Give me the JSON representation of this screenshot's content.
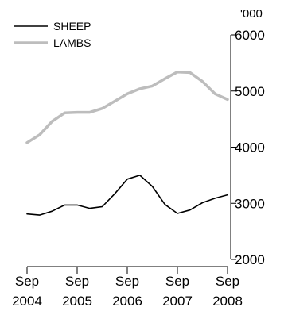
{
  "chart_data": {
    "type": "line",
    "unit": "'000",
    "x_ticks": [
      {
        "line1": "Sep",
        "line2": "2004"
      },
      {
        "line1": "Sep",
        "line2": "2005"
      },
      {
        "line1": "Sep",
        "line2": "2006"
      },
      {
        "line1": "Sep",
        "line2": "2007"
      },
      {
        "line1": "Sep",
        "line2": "2008"
      }
    ],
    "x": [
      "Sep 2004",
      "Dec 2004",
      "Mar 2005",
      "Jun 2005",
      "Sep 2005",
      "Dec 2005",
      "Mar 2006",
      "Jun 2006",
      "Sep 2006",
      "Dec 2006",
      "Mar 2007",
      "Jun 2007",
      "Sep 2007",
      "Dec 2007",
      "Mar 2008",
      "Jun 2008",
      "Sep 2008"
    ],
    "ylim": [
      2000,
      6000
    ],
    "yticks": [
      "2000",
      "3000",
      "4000",
      "5000",
      "6000"
    ],
    "grid": false,
    "legend_position": "top-left",
    "series": [
      {
        "name": "SHEEP",
        "color": "#000000",
        "values": [
          2810,
          2790,
          2860,
          2970,
          2970,
          2910,
          2940,
          3170,
          3430,
          3500,
          3300,
          2980,
          2820,
          2880,
          3010,
          3090,
          3150
        ]
      },
      {
        "name": "LAMBS",
        "color": "#bdbdbd",
        "values": [
          4080,
          4220,
          4460,
          4610,
          4620,
          4620,
          4690,
          4820,
          4950,
          5040,
          5090,
          5220,
          5340,
          5330,
          5170,
          4950,
          4850
        ]
      }
    ]
  }
}
